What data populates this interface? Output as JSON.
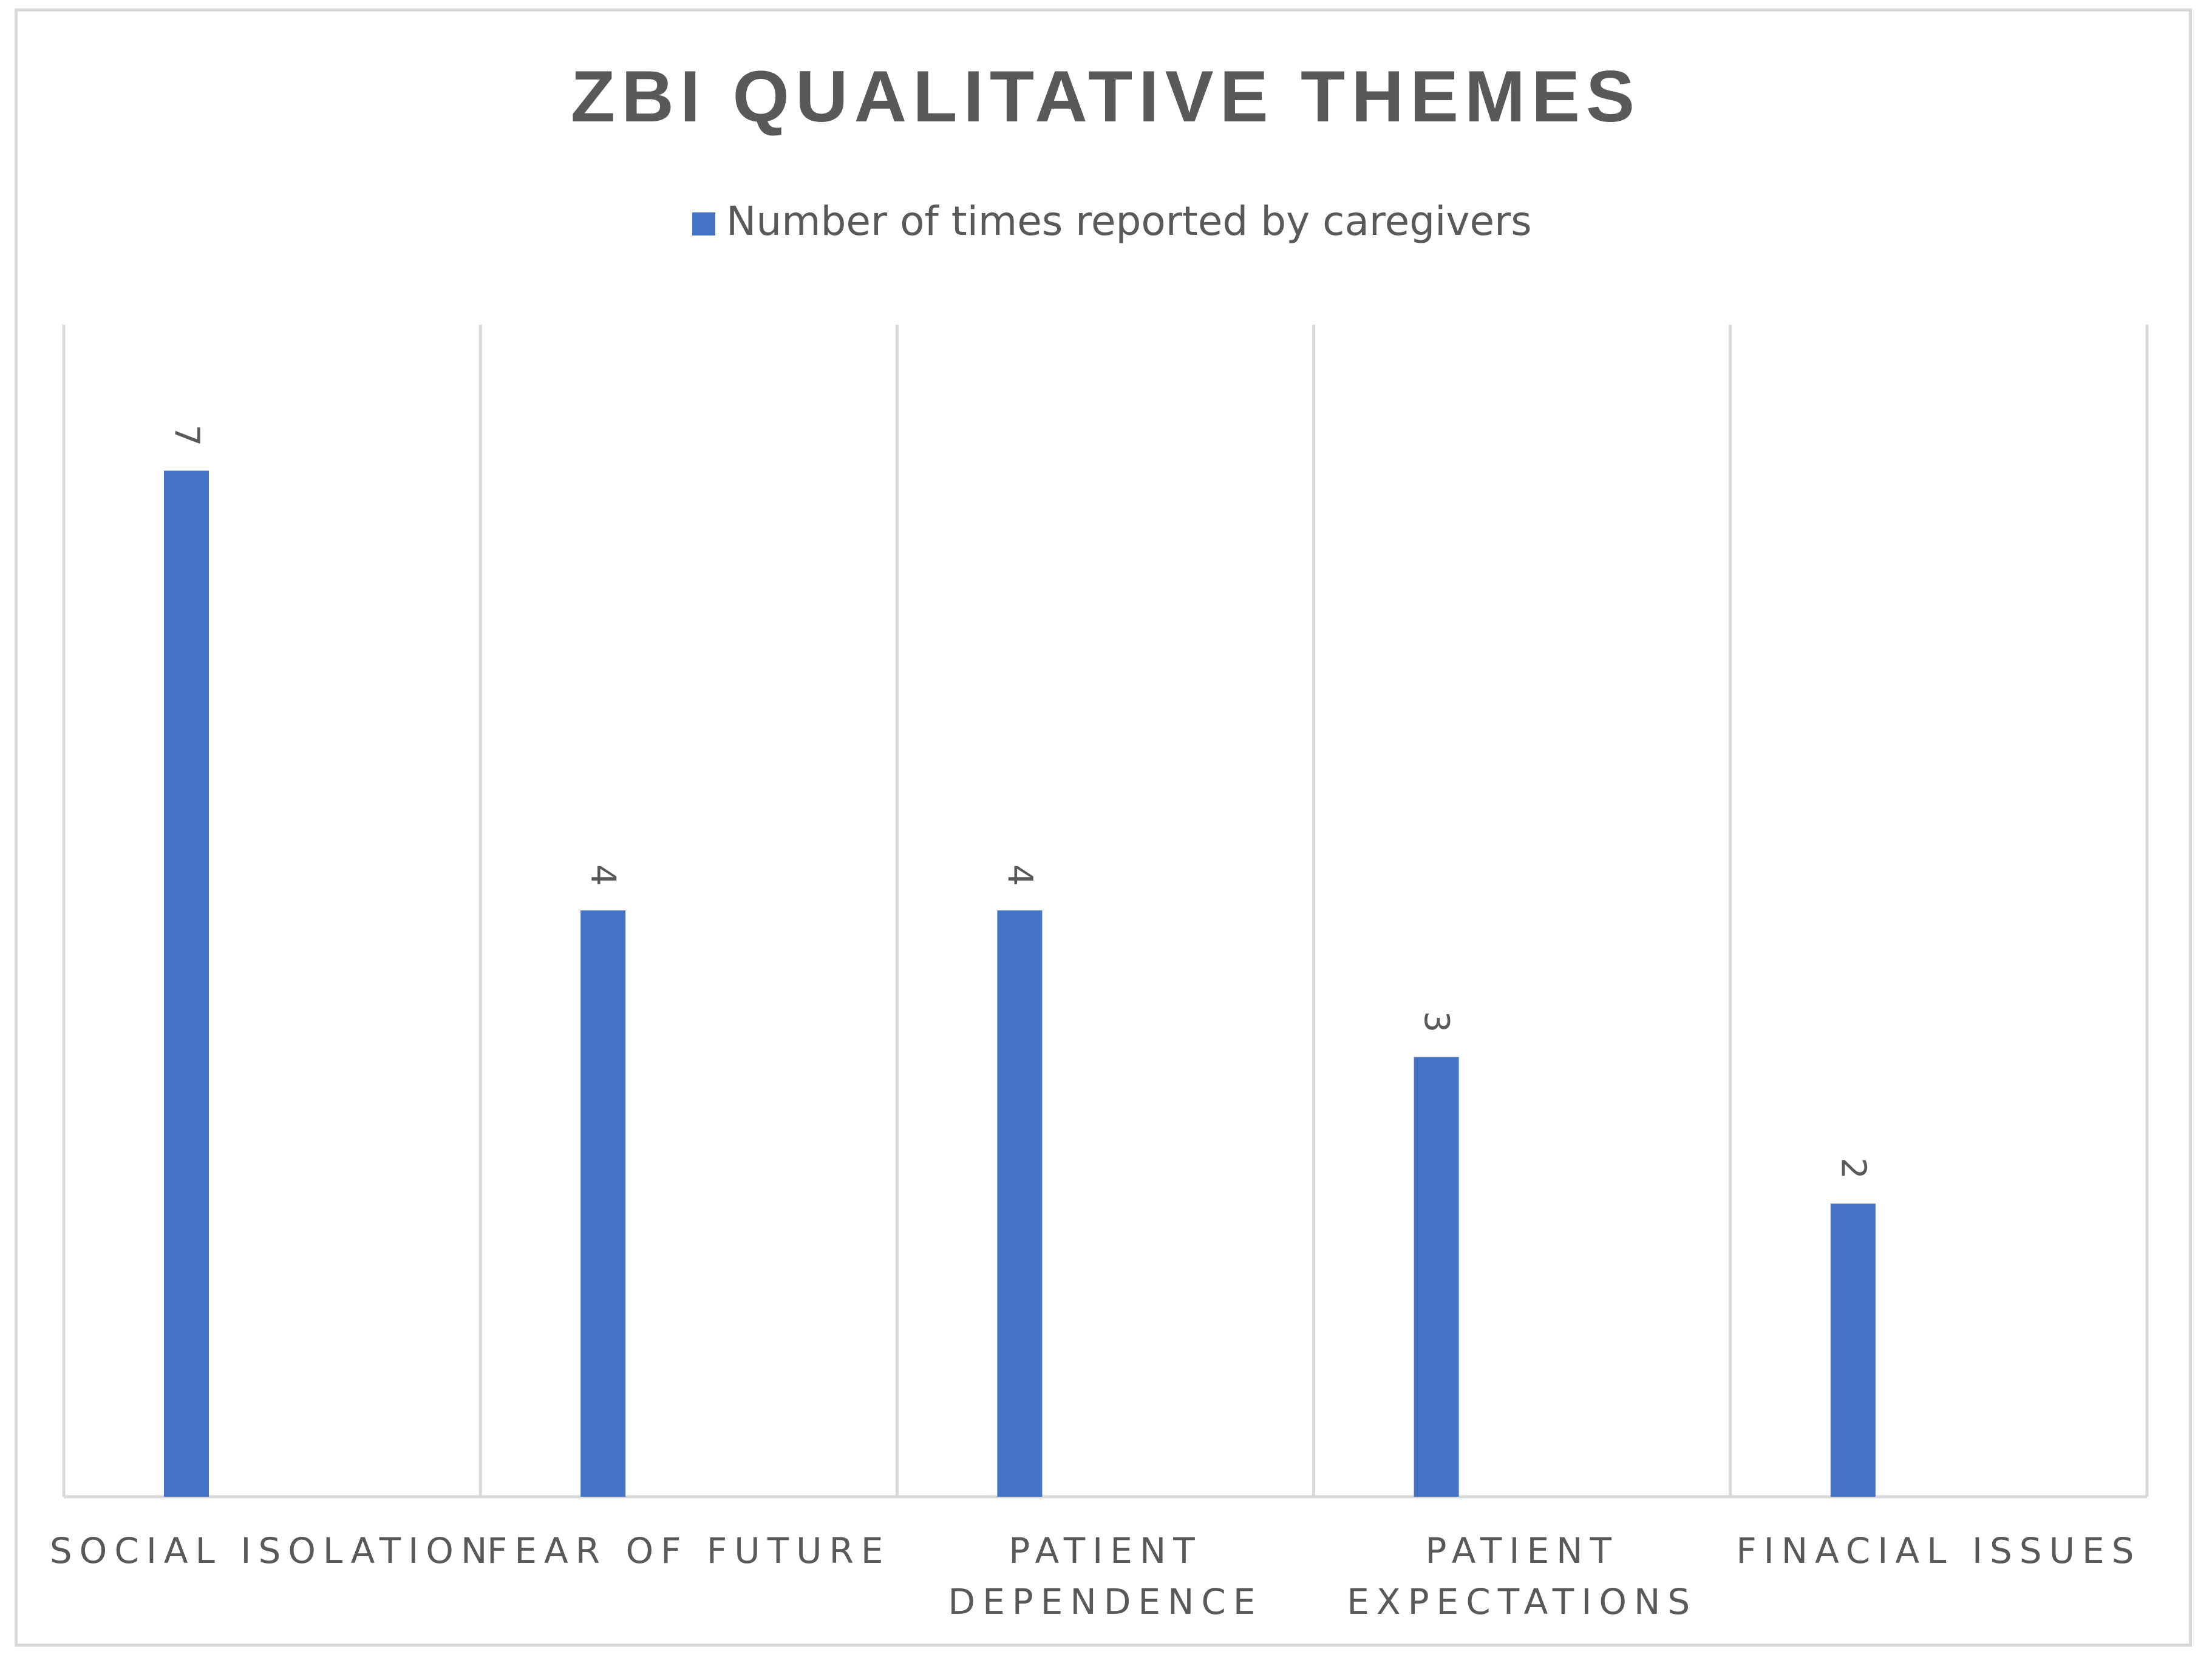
{
  "chart_data": {
    "type": "bar",
    "title": "ZBI QUALITATIVE THEMES",
    "categories": [
      [
        "SOCIAL ISOLATION"
      ],
      [
        "FEAR OF FUTURE"
      ],
      [
        "PATIENT",
        "DEPENDENCE"
      ],
      [
        "PATIENT",
        "EXPECTATIONS"
      ],
      [
        "FINACIAL ISSUES"
      ]
    ],
    "series": [
      {
        "name": "Number of times reported by caregivers",
        "values": [
          7,
          4,
          4,
          3,
          2
        ],
        "color": "#4472c4"
      }
    ],
    "ylim": [
      0,
      8
    ],
    "data_labels": true,
    "data_label_rotation": "vertical",
    "legend_position": "top",
    "grid": "vertical-category-separators",
    "colors": {
      "bar": "#4472c4",
      "grid": "#d9d9d9",
      "text": "#595959"
    }
  }
}
